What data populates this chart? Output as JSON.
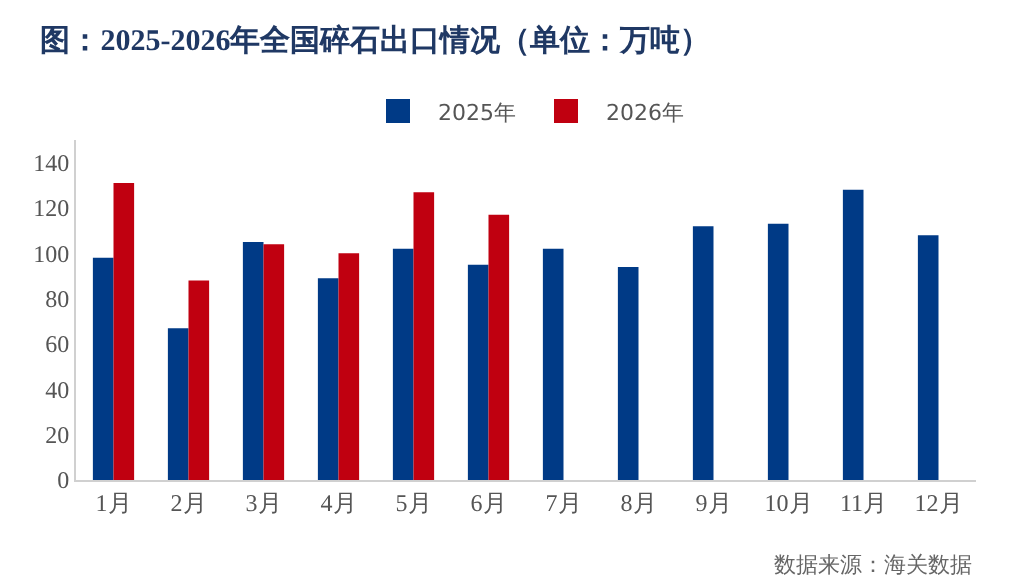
{
  "chart_data": {
    "type": "bar",
    "title": "图：2025-2026年全国碎石出口情况（单位：万吨）",
    "categories": [
      "1月",
      "2月",
      "3月",
      "4月",
      "5月",
      "6月",
      "7月",
      "8月",
      "9月",
      "10月",
      "11月",
      "12月"
    ],
    "series": [
      {
        "name": "2025年",
        "color": "#003a86",
        "values": [
          98,
          67,
          105,
          89,
          102,
          95,
          102,
          94,
          112,
          113,
          128,
          108
        ]
      },
      {
        "name": "2026年",
        "color": "#c00010",
        "values": [
          131,
          88,
          104,
          100,
          127,
          117,
          null,
          null,
          null,
          null,
          null,
          null
        ]
      }
    ],
    "ylim": [
      0,
      150
    ],
    "yticks": [
      0,
      20,
      40,
      60,
      80,
      100,
      120,
      140
    ],
    "grid": false,
    "legend": "top",
    "annotations": [
      "数据来源：海关数据"
    ]
  }
}
